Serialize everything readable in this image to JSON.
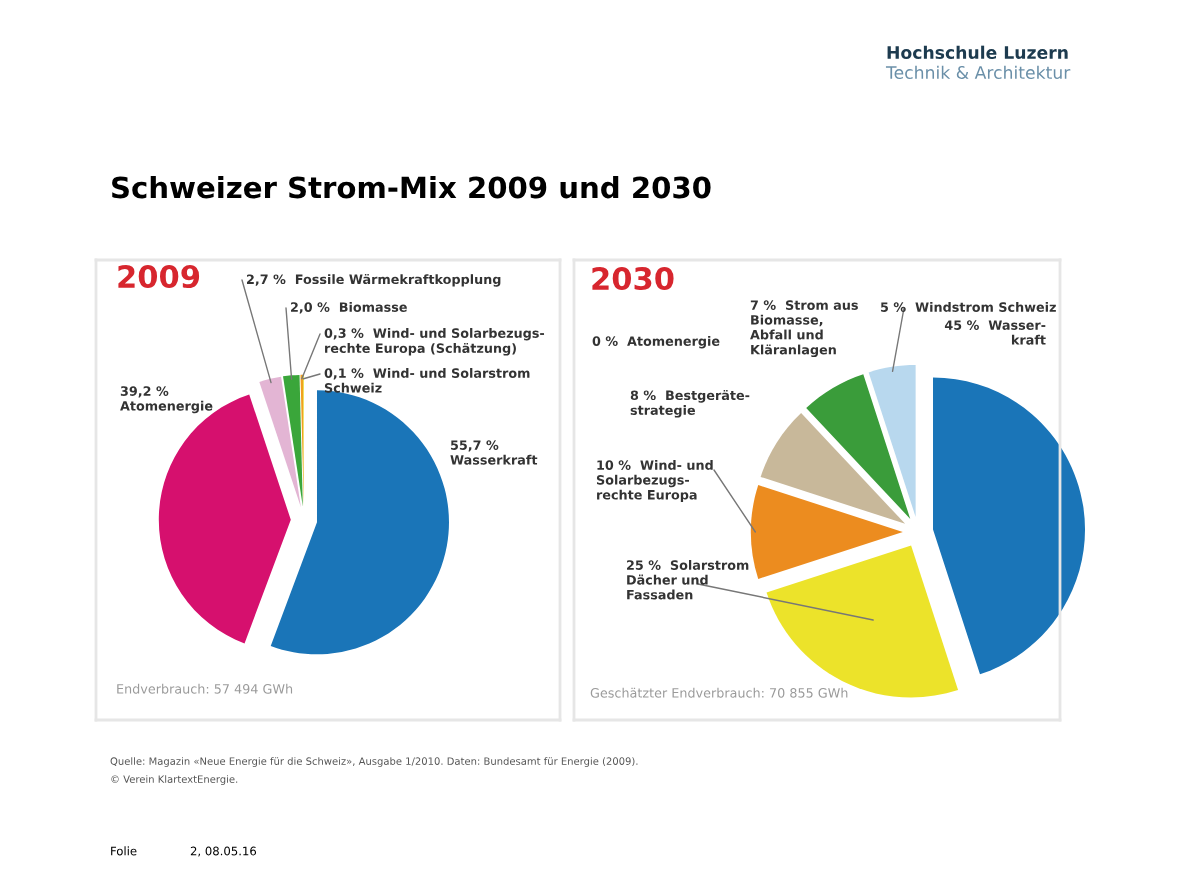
{
  "chart_data": [
    {
      "type": "pie",
      "title": "2009",
      "categories": [
        "Wasserkraft",
        "Atomenergie",
        "Fossile Wärmekraftkopplung",
        "Biomasse",
        "Wind- und Solarbezugs-\nrechte Europa (Schätzung)",
        "Wind- und Solarstrom\nSchweiz"
      ],
      "values": [
        55.7,
        39.2,
        2.7,
        2.0,
        0.3,
        0.1
      ],
      "value_labels": [
        "55,7 %",
        "39,2 %",
        "2,7 %",
        "2,0 %",
        "0,3 %",
        "0,1 %"
      ],
      "colors": [
        "#1a75b8",
        "#d6106e",
        "#e3b5d4",
        "#3aa63a",
        "#f0a020",
        "#e8d820"
      ],
      "annotations": [
        "Hochschule Luzern",
        "Technik & Architektur",
        "Schweizer Strom-Mix 2009 und 2030",
        "Endverbrauch: 57 494 GWh",
        "Quelle: Magazin «Neue Energie für die Schweiz», Ausgabe 1/2010. Daten: Bundesamt für Energie (2009).",
        "© Verein KlartextEnergie.",
        "Folie",
        "2, 08.05.16"
      ]
    },
    {
      "type": "pie",
      "title": "2030",
      "categories": [
        "Wasser-\nkraft",
        "Solarstrom\nDächer und\nFassaden",
        "Wind- und\nSolarbezugs-\nrechte Europa",
        "Bestgeräte-\nstrategie",
        "Strom aus\nBiomasse,\nAbfall und\nKläranlagen",
        "Windstrom Schweiz",
        "Atomenergie"
      ],
      "values": [
        45,
        25,
        10,
        8,
        7,
        5,
        0
      ],
      "value_labels": [
        "45 %",
        "25 %",
        "10 %",
        "8 %",
        "7 %",
        "5 %",
        "0 %"
      ],
      "colors": [
        "#1a75b8",
        "#ece32a",
        "#ec8c1f",
        "#c8b89a",
        "#3a9c3a",
        "#b8d8ee",
        "#888888"
      ],
      "annotations": [
        "Geschätzter Endverbrauch: 70 855 GWh"
      ]
    }
  ]
}
